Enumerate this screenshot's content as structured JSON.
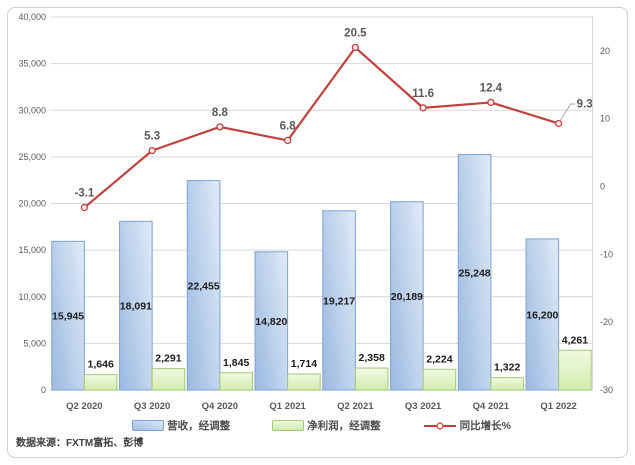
{
  "chart_data": {
    "type": "combo",
    "categories": [
      "Q2 2020",
      "Q3 2020",
      "Q4 2020",
      "Q1 2021",
      "Q2 2021",
      "Q3 2021",
      "Q4 2021",
      "Q1 2022"
    ],
    "series": [
      {
        "name": "营收，经调整",
        "type": "bar",
        "axis": "left",
        "values": [
          15945,
          18091,
          22455,
          14820,
          19217,
          20189,
          25248,
          16200
        ],
        "labels": [
          "15,945",
          "18,091",
          "22,455",
          "14,820",
          "19,217",
          "20,189",
          "25,248",
          "16,200"
        ],
        "fill_from": "#9fbce2",
        "fill_to": "#dce8f6",
        "border": "#7ba2d0"
      },
      {
        "name": "净利润，经调整",
        "type": "bar",
        "axis": "left",
        "values": [
          1646,
          2291,
          1845,
          1714,
          2358,
          2224,
          1322,
          4261
        ],
        "labels": [
          "1,646",
          "2,291",
          "1,845",
          "1,714",
          "2,358",
          "2,224",
          "1,322",
          "4,261"
        ],
        "fill_from": "#f1f9e3",
        "fill_to": "#d2ecae",
        "border": "#a3c873"
      },
      {
        "name": "同比增长%",
        "type": "line",
        "axis": "right",
        "values": [
          -3.1,
          5.3,
          8.8,
          6.8,
          20.5,
          11.6,
          12.4,
          9.3
        ],
        "labels": [
          "-3.1",
          "5.3",
          "8.8",
          "6.8",
          "20.5",
          "11.6",
          "12.4",
          "9.3"
        ],
        "color": "#c2413e",
        "marker": "open-circle",
        "last_label_callout": true
      }
    ],
    "left_axis": {
      "min": 0,
      "max": 40000,
      "step": 5000,
      "ticks": [
        "40,000",
        "35,000",
        "30,000",
        "25,000",
        "20,000",
        "15,000",
        "10,000",
        "5,000",
        "0"
      ]
    },
    "right_axis": {
      "ticks": [
        "20",
        "10",
        "0",
        "-10",
        "-20",
        "-30"
      ],
      "tick_values": [
        20,
        10,
        0,
        -10,
        -20,
        -30
      ],
      "top_value": 25,
      "bottom_value": -30
    },
    "grid": true,
    "legend_position": "bottom",
    "colors": {
      "gridline": "#d9d9d9",
      "axis_line": "#bdbdbd",
      "tick_text": "#595959",
      "bar_label_text": "#1a1a1a",
      "line_label_text": "#595959",
      "callout_leader": "#a6a6a6"
    }
  },
  "footer": {
    "source": "数据来源：FXTM富拓、彭博"
  }
}
